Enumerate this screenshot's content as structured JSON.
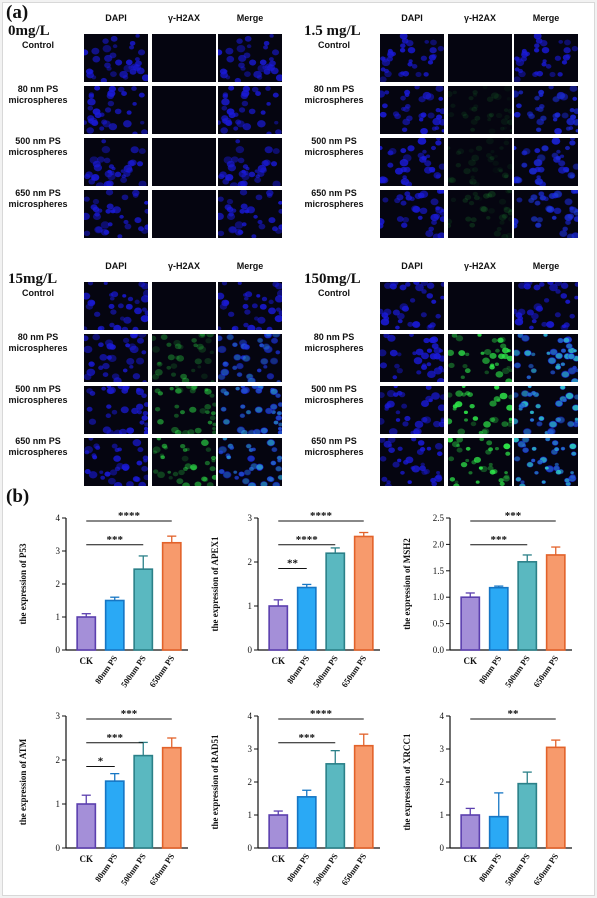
{
  "panel_a": {
    "label": "(a)",
    "columns": [
      "DAPI",
      "γ-H2AX",
      "Merge"
    ],
    "rows": [
      "Control",
      "80 nm PS microspheres",
      "500 nm PS microspheres",
      "650 nm PS microspheres"
    ],
    "groups": [
      {
        "concentration": "0mg/L",
        "green_intensity": [
          0,
          0,
          0,
          0
        ]
      },
      {
        "concentration": "1.5 mg/L",
        "green_intensity": [
          0,
          0.12,
          0.12,
          0.15
        ]
      },
      {
        "concentration": "15mg/L",
        "green_intensity": [
          0,
          0.4,
          0.55,
          0.65
        ]
      },
      {
        "concentration": "150mg/L",
        "green_intensity": [
          0,
          0.85,
          0.95,
          1.0
        ]
      }
    ],
    "colors": {
      "dapi": "#1a1ad8",
      "green": "#2ee84a",
      "background": "#050510"
    }
  },
  "panel_b": {
    "label": "(b)"
  },
  "chart_data": [
    {
      "type": "bar",
      "categories": [
        "CK",
        "80nm PS",
        "500nm PS",
        "650nm PS"
      ],
      "values": [
        1.0,
        1.5,
        2.45,
        3.25
      ],
      "errors": [
        0.1,
        0.1,
        0.4,
        0.2
      ],
      "ylabel": "the expression of P53",
      "ylim": [
        0,
        4
      ],
      "yticks": [
        "0",
        "1",
        "2",
        "3",
        "4"
      ],
      "significance": [
        {
          "from": 0,
          "to": 2,
          "label": "***"
        },
        {
          "from": 0,
          "to": 3,
          "label": "****"
        }
      ]
    },
    {
      "type": "bar",
      "categories": [
        "CK",
        "80nm PS",
        "500nm PS",
        "650nm PS"
      ],
      "values": [
        1.0,
        1.42,
        2.2,
        2.58
      ],
      "errors": [
        0.14,
        0.07,
        0.12,
        0.09
      ],
      "ylabel": "the expression of APEX1",
      "ylim": [
        0,
        3
      ],
      "yticks": [
        "0",
        "1",
        "2",
        "3"
      ],
      "significance": [
        {
          "from": 0,
          "to": 1,
          "label": "**"
        },
        {
          "from": 0,
          "to": 2,
          "label": "****"
        },
        {
          "from": 0,
          "to": 3,
          "label": "****"
        }
      ]
    },
    {
      "type": "bar",
      "categories": [
        "CK",
        "80nm PS",
        "500nm PS",
        "650nm PS"
      ],
      "values": [
        1.0,
        1.18,
        1.67,
        1.8
      ],
      "errors": [
        0.08,
        0.03,
        0.13,
        0.15
      ],
      "ylabel": "the expression of MSH2",
      "ylim": [
        0,
        2.5
      ],
      "yticks": [
        "0.0",
        "0.5",
        "1.0",
        "1.5",
        "2.0",
        "2.5"
      ],
      "significance": [
        {
          "from": 0,
          "to": 2,
          "label": "***"
        },
        {
          "from": 0,
          "to": 3,
          "label": "***"
        }
      ]
    },
    {
      "type": "bar",
      "categories": [
        "CK",
        "80nm PS",
        "500nm PS",
        "650nm PS"
      ],
      "values": [
        1.0,
        1.52,
        2.1,
        2.28
      ],
      "errors": [
        0.2,
        0.17,
        0.3,
        0.22
      ],
      "ylabel": "the expression of ATM",
      "ylim": [
        0,
        3
      ],
      "yticks": [
        "0",
        "1",
        "2",
        "3"
      ],
      "significance": [
        {
          "from": 0,
          "to": 1,
          "label": "*"
        },
        {
          "from": 0,
          "to": 2,
          "label": "***"
        },
        {
          "from": 0,
          "to": 3,
          "label": "***"
        }
      ]
    },
    {
      "type": "bar",
      "categories": [
        "CK",
        "80nm PS",
        "500nm PS",
        "650nm PS"
      ],
      "values": [
        1.0,
        1.55,
        2.55,
        3.1
      ],
      "errors": [
        0.12,
        0.2,
        0.4,
        0.35
      ],
      "ylabel": "the expression of RAD51",
      "ylim": [
        0,
        4
      ],
      "yticks": [
        "0",
        "1",
        "2",
        "3",
        "4"
      ],
      "significance": [
        {
          "from": 0,
          "to": 2,
          "label": "***"
        },
        {
          "from": 0,
          "to": 3,
          "label": "****"
        }
      ]
    },
    {
      "type": "bar",
      "categories": [
        "CK",
        "80nm PS",
        "500nm PS",
        "650nm PS"
      ],
      "values": [
        1.0,
        0.95,
        1.95,
        3.05
      ],
      "errors": [
        0.2,
        0.72,
        0.35,
        0.22
      ],
      "ylabel": "the expression of XRCC1",
      "ylim": [
        0,
        4
      ],
      "yticks": [
        "0",
        "1",
        "2",
        "3",
        "4"
      ],
      "significance": [
        {
          "from": 0,
          "to": 3,
          "label": "**"
        }
      ]
    }
  ],
  "bar_colors": {
    "fill": [
      "#a48fd8",
      "#2aa9f5",
      "#5ab8c0",
      "#f79a6c"
    ],
    "stroke": [
      "#5b3fae",
      "#1676c4",
      "#2b8088",
      "#e2622a"
    ]
  }
}
